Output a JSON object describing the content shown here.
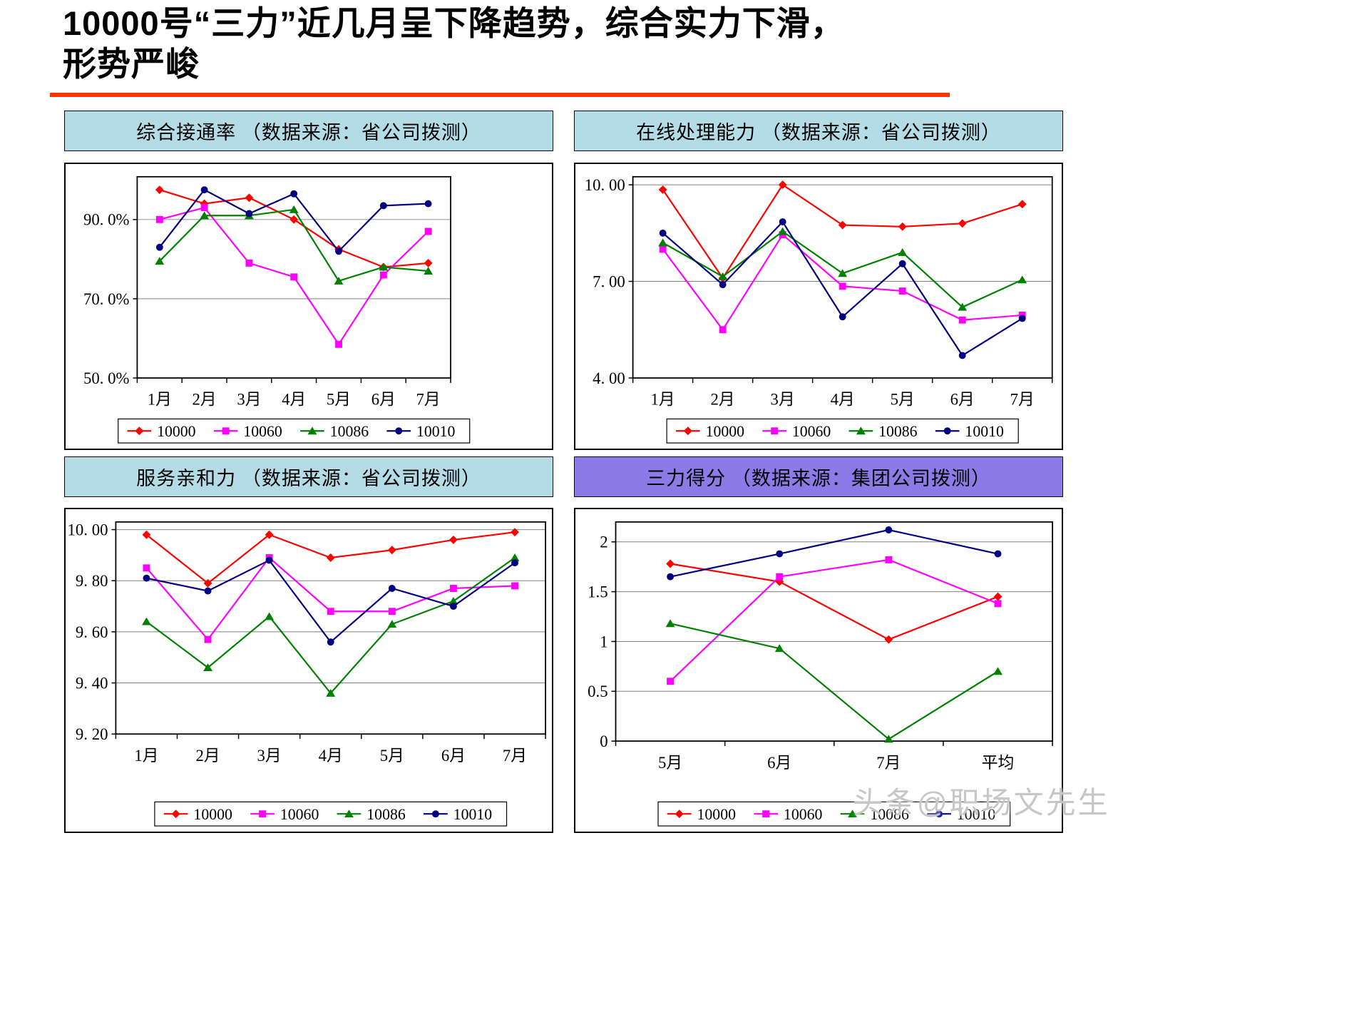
{
  "slide": {
    "title_line1": "10000号“三力”近几月呈下降趋势，综合实力下滑，",
    "title_line2": "形势严峻",
    "accent_color": "#FF3300",
    "watermark": "头条@职场文先生",
    "watermark_color": "#C7C7C7"
  },
  "chart_data": [
    {
      "type": "line",
      "title": "综合接通率 （数据来源：省公司拨测）",
      "header_bg": "#B4DCE6",
      "categories": [
        "1月",
        "2月",
        "3月",
        "4月",
        "5月",
        "6月",
        "7月"
      ],
      "ylim": [
        50,
        100.8
      ],
      "yticks": [
        {
          "label": "90. 0%",
          "value": 90
        },
        {
          "label": "70. 0%",
          "value": 70
        },
        {
          "label": "50. 0%",
          "value": 50
        }
      ],
      "grid": true,
      "legend_position": "bottom",
      "series": [
        {
          "name": "10000",
          "color": "#FF0000",
          "marker": "diamond",
          "values": [
            97.5,
            94.0,
            95.5,
            90.0,
            82.5,
            78.0,
            79.0
          ]
        },
        {
          "name": "10060",
          "color": "#FF00FF",
          "marker": "square",
          "values": [
            90.0,
            93.0,
            79.0,
            75.5,
            58.5,
            76.0,
            87.0
          ]
        },
        {
          "name": "10086",
          "color": "#008000",
          "marker": "triangle",
          "values": [
            79.5,
            91.0,
            91.0,
            92.5,
            74.5,
            78.0,
            77.0
          ]
        },
        {
          "name": "10010",
          "color": "#000080",
          "marker": "circle",
          "values": [
            83.0,
            97.5,
            91.5,
            96.5,
            82.0,
            93.5,
            94.0
          ]
        }
      ]
    },
    {
      "type": "line",
      "title": "在线处理能力 （数据来源：省公司拨测）",
      "header_bg": "#B4DCE6",
      "categories": [
        "1月",
        "2月",
        "3月",
        "4月",
        "5月",
        "6月",
        "7月"
      ],
      "ylim": [
        4,
        10.25
      ],
      "yticks": [
        {
          "label": "10. 00",
          "value": 10
        },
        {
          "label": "7. 00",
          "value": 7
        },
        {
          "label": "4. 00",
          "value": 4
        }
      ],
      "grid": true,
      "legend_position": "bottom",
      "series": [
        {
          "name": "10000",
          "color": "#FF0000",
          "marker": "diamond",
          "values": [
            9.85,
            7.1,
            10.0,
            8.75,
            8.7,
            8.8,
            9.4
          ]
        },
        {
          "name": "10060",
          "color": "#FF00FF",
          "marker": "square",
          "values": [
            8.0,
            5.5,
            8.45,
            6.85,
            6.7,
            5.8,
            5.95
          ]
        },
        {
          "name": "10086",
          "color": "#008000",
          "marker": "triangle",
          "values": [
            8.2,
            7.15,
            8.55,
            7.25,
            7.9,
            6.2,
            7.05
          ]
        },
        {
          "name": "10010",
          "color": "#000080",
          "marker": "circle",
          "values": [
            8.5,
            6.9,
            8.85,
            5.9,
            7.55,
            4.7,
            5.85
          ]
        }
      ]
    },
    {
      "type": "line",
      "title": "服务亲和力 （数据来源：省公司拨测）",
      "header_bg": "#B4DCE6",
      "categories": [
        "1月",
        "2月",
        "3月",
        "4月",
        "5月",
        "6月",
        "7月"
      ],
      "ylim": [
        9.2,
        10.03
      ],
      "yticks": [
        {
          "label": "10. 00",
          "value": 10.0
        },
        {
          "label": "9. 80",
          "value": 9.8
        },
        {
          "label": "9. 60",
          "value": 9.6
        },
        {
          "label": "9. 40",
          "value": 9.4
        },
        {
          "label": "9. 20",
          "value": 9.2
        }
      ],
      "grid": true,
      "legend_position": "bottom",
      "series": [
        {
          "name": "10000",
          "color": "#FF0000",
          "marker": "diamond",
          "values": [
            9.98,
            9.79,
            9.98,
            9.89,
            9.92,
            9.96,
            9.99
          ]
        },
        {
          "name": "10060",
          "color": "#FF00FF",
          "marker": "square",
          "values": [
            9.85,
            9.57,
            9.89,
            9.68,
            9.68,
            9.77,
            9.78
          ]
        },
        {
          "name": "10086",
          "color": "#008000",
          "marker": "triangle",
          "values": [
            9.64,
            9.46,
            9.66,
            9.36,
            9.63,
            9.72,
            9.89
          ]
        },
        {
          "name": "10010",
          "color": "#000080",
          "marker": "circle",
          "values": [
            9.81,
            9.76,
            9.88,
            9.56,
            9.77,
            9.7,
            9.87
          ]
        }
      ]
    },
    {
      "type": "line",
      "title": "三力得分 （数据来源：集团公司拨测）",
      "header_bg": "#8C7AE6",
      "categories": [
        "5月",
        "6月",
        "7月",
        "平均"
      ],
      "ylim": [
        0,
        2.2
      ],
      "yticks": [
        {
          "label": "2",
          "value": 2
        },
        {
          "label": "1.5",
          "value": 1.5
        },
        {
          "label": "1",
          "value": 1
        },
        {
          "label": "0.5",
          "value": 0.5
        },
        {
          "label": "0",
          "value": 0
        }
      ],
      "grid": true,
      "legend_position": "bottom",
      "series": [
        {
          "name": "10000",
          "color": "#FF0000",
          "marker": "diamond",
          "values": [
            1.78,
            1.6,
            1.02,
            1.45
          ]
        },
        {
          "name": "10060",
          "color": "#FF00FF",
          "marker": "square",
          "values": [
            0.6,
            1.65,
            1.82,
            1.38
          ]
        },
        {
          "name": "10086",
          "color": "#008000",
          "marker": "triangle",
          "values": [
            1.18,
            0.93,
            0.02,
            0.7
          ]
        },
        {
          "name": "10010",
          "color": "#000080",
          "marker": "circle",
          "values": [
            1.65,
            1.88,
            2.12,
            1.88
          ]
        }
      ]
    }
  ]
}
